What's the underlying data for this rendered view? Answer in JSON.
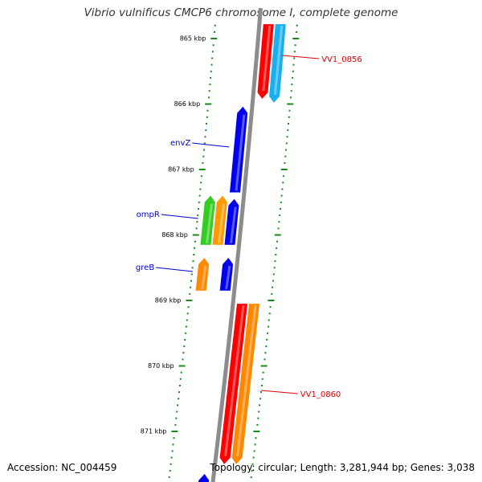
{
  "title": "Vibrio vulnificus CMCP6 chromosome I, complete genome",
  "footer": {
    "accession": "Accession: NC_004459",
    "summary": "Topology: circular; Length: 3,281,944 bp; Genes: 3,038"
  },
  "colors": {
    "backbone": "#8c8c8c",
    "ticks": "#1a8a1a",
    "label_forward": "#0000cc",
    "label_reverse": "#dd0000"
  },
  "map": {
    "ticks": [
      {
        "kbp": 865,
        "label": "865 kbp"
      },
      {
        "kbp": 866,
        "label": "866 kbp"
      },
      {
        "kbp": 867,
        "label": "867 kbp"
      },
      {
        "kbp": 868,
        "label": "868 kbp"
      },
      {
        "kbp": 869,
        "label": "869 kbp"
      },
      {
        "kbp": 870,
        "label": "870 kbp"
      },
      {
        "kbp": 871,
        "label": "871 kbp"
      }
    ],
    "genes": [
      {
        "name": "VV1_0856",
        "label": "VV1_0856",
        "labeled": true,
        "strand": "reverse",
        "lane": 1,
        "start_kbp": 864.78,
        "end_kbp": 865.92,
        "color": "#ff0000"
      },
      {
        "name": "",
        "label": "",
        "labeled": false,
        "strand": "reverse",
        "lane": 2,
        "start_kbp": 864.78,
        "end_kbp": 865.98,
        "color": "#1ab0ee"
      },
      {
        "name": "envZ",
        "label": "envZ",
        "labeled": true,
        "strand": "forward",
        "lane": 1,
        "start_kbp": 866.04,
        "end_kbp": 867.35,
        "color": "#0000ee"
      },
      {
        "name": "",
        "label": "",
        "labeled": false,
        "strand": "forward",
        "lane": 1,
        "start_kbp": 867.45,
        "end_kbp": 868.15,
        "color": "#0000ee"
      },
      {
        "name": "ompR",
        "label": "ompR",
        "labeled": true,
        "strand": "forward",
        "lane": 3,
        "start_kbp": 867.4,
        "end_kbp": 868.15,
        "color": "#33cc22"
      },
      {
        "name": "",
        "label": "",
        "labeled": false,
        "strand": "forward",
        "lane": 2,
        "start_kbp": 867.4,
        "end_kbp": 868.15,
        "color": "#ff9900"
      },
      {
        "name": "greB",
        "label": "greB",
        "labeled": true,
        "strand": "forward",
        "lane": 3,
        "start_kbp": 868.35,
        "end_kbp": 868.85,
        "color": "#ff8800"
      },
      {
        "name": "",
        "label": "",
        "labeled": false,
        "strand": "forward",
        "lane": 1,
        "start_kbp": 868.35,
        "end_kbp": 868.85,
        "color": "#0000ee"
      },
      {
        "name": "",
        "label": "",
        "labeled": false,
        "strand": "reverse",
        "lane": 1,
        "start_kbp": 869.05,
        "end_kbp": 871.5,
        "color": "#ff0000"
      },
      {
        "name": "VV1_0860",
        "label": "VV1_0860",
        "labeled": true,
        "strand": "reverse",
        "lane": 2,
        "start_kbp": 869.05,
        "end_kbp": 871.5,
        "color": "#ff8800"
      },
      {
        "name": "",
        "label": "",
        "labeled": false,
        "strand": "forward",
        "lane": 1,
        "start_kbp": 871.65,
        "end_kbp": 872.0,
        "color": "#0000ee"
      }
    ]
  }
}
